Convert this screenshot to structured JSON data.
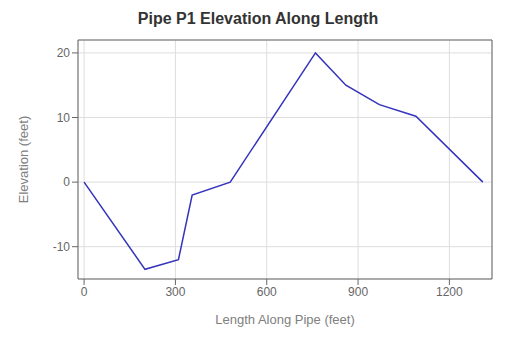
{
  "chart_data": {
    "type": "line",
    "title": "Pipe P1 Elevation Along Length",
    "xlabel": "Length Along Pipe (feet)",
    "ylabel": "Elevation (feet)",
    "x": [
      0,
      200,
      310,
      355,
      480,
      760,
      860,
      970,
      1090,
      1310
    ],
    "values": [
      0,
      -13.5,
      -12,
      -2,
      0,
      20,
      15,
      12,
      10.2,
      0
    ],
    "color": "#3333bb",
    "xlim": [
      -20,
      1340
    ],
    "ylim": [
      -15,
      22
    ],
    "xticks": [
      0,
      300,
      600,
      900,
      1200
    ],
    "yticks": [
      -10,
      0,
      10,
      20
    ],
    "grid": true
  }
}
